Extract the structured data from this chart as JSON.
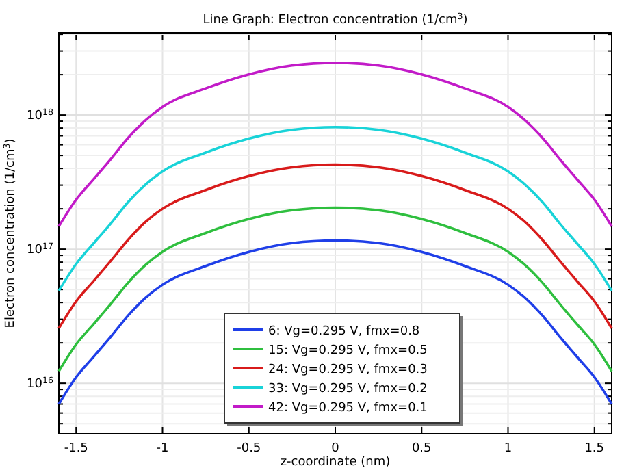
{
  "chart_data": {
    "type": "line",
    "title": "Line Graph: Electron concentration (1/cm$^{3}$)",
    "xlabel": "z-coordinate (nm)",
    "ylabel": "Electron concentration (1/cm$^{3}$)",
    "x": [
      -1.6,
      -1.5,
      -1.4,
      -1.3,
      -1.2,
      -1.1,
      -1,
      -0.75,
      -0.5,
      -0.25,
      0,
      0.25,
      0.5,
      0.75,
      1,
      1.1,
      1.2,
      1.3,
      1.4,
      1.5,
      1.6
    ],
    "series": [
      {
        "name": "6: Vg=0.295 V, fmx=0.8",
        "color": "#1f3fe8",
        "values": [
          7000000000000000.0,
          1.11e+16,
          1.57e+16,
          2.22e+16,
          3.19e+16,
          4.32e+16,
          5.43e+16,
          7.49e+16,
          9.54e+16,
          1.11e+17,
          1.16e+17,
          1.11e+17,
          9.54e+16,
          7.49e+16,
          5.43e+16,
          4.32e+16,
          3.19e+16,
          2.22e+16,
          1.57e+16,
          1.11e+16,
          7000000000000000.0
        ]
      },
      {
        "name": "15: Vg=0.295 V, fmx=0.5",
        "color": "#2fbf3f",
        "values": [
          1.23e+16,
          1.95e+16,
          2.75e+16,
          3.9e+16,
          5.61e+16,
          7.59e+16,
          9.55e+16,
          1.32e+17,
          1.68e+17,
          1.95e+17,
          2.04e+17,
          1.95e+17,
          1.68e+17,
          1.32e+17,
          9.55e+16,
          7.59e+16,
          5.61e+16,
          3.9e+16,
          2.75e+16,
          1.95e+16,
          1.23e+16
        ]
      },
      {
        "name": "24: Vg=0.295 V, fmx=0.3",
        "color": "#d81b1b",
        "values": [
          2.57e+16,
          4.08e+16,
          5.76e+16,
          8.16e+16,
          1.17e+17,
          1.59e+17,
          2e+17,
          2.76e+17,
          3.51e+17,
          4.08e+17,
          4.27e+17,
          4.08e+17,
          3.51e+17,
          2.76e+17,
          2e+17,
          1.59e+17,
          1.17e+17,
          8.16e+16,
          5.76e+16,
          4.08e+16,
          2.57e+16
        ]
      },
      {
        "name": "33: Vg=0.295 V, fmx=0.2",
        "color": "#19d3d8",
        "values": [
          4.9e+16,
          7.76e+16,
          1.1e+17,
          1.55e+17,
          2.24e+17,
          3.02e+17,
          3.8e+17,
          5.25e+17,
          6.68e+17,
          7.76e+17,
          8.13e+17,
          7.76e+17,
          6.68e+17,
          5.25e+17,
          3.8e+17,
          3.02e+17,
          2.24e+17,
          1.55e+17,
          1.1e+17,
          7.76e+16,
          4.9e+16
        ]
      },
      {
        "name": "42: Vg=0.295 V, fmx=0.1",
        "color": "#c21bc8",
        "values": [
          1.48e+17,
          2.34e+17,
          3.31e+17,
          4.68e+17,
          6.74e+17,
          9.11e+17,
          1.15e+18,
          1.58e+18,
          2.01e+18,
          2.34e+18,
          2.45e+18,
          2.34e+18,
          2.01e+18,
          1.58e+18,
          1.15e+18,
          9.11e+17,
          6.74e+17,
          4.68e+17,
          3.31e+17,
          2.34e+17,
          1.48e+17
        ]
      }
    ],
    "xlim": [
      -1.6,
      1.6
    ],
    "xticks": [
      -1.5,
      -1,
      -0.5,
      0,
      0.5,
      1,
      1.5
    ],
    "ylim": [
      4200000000000000.0,
      4.1e+18
    ],
    "yticks": [
      {
        "value": 5000000000000000.0,
        "label": null
      },
      {
        "value": 6000000000000000.0,
        "label": null
      },
      {
        "value": 7000000000000000.0,
        "label": null
      },
      {
        "value": 8000000000000000.0,
        "label": null
      },
      {
        "value": 9000000000000000.0,
        "label": null
      },
      {
        "value": 1e+16,
        "label": "10$^{16}$"
      },
      {
        "value": 2e+16,
        "label": null
      },
      {
        "value": 3e+16,
        "label": null
      },
      {
        "value": 4e+16,
        "label": null
      },
      {
        "value": 5e+16,
        "label": null
      },
      {
        "value": 6e+16,
        "label": null
      },
      {
        "value": 7e+16,
        "label": null
      },
      {
        "value": 8e+16,
        "label": null
      },
      {
        "value": 9e+16,
        "label": null
      },
      {
        "value": 1e+17,
        "label": "10$^{17}$"
      },
      {
        "value": 2e+17,
        "label": null
      },
      {
        "value": 3e+17,
        "label": null
      },
      {
        "value": 4e+17,
        "label": null
      },
      {
        "value": 5e+17,
        "label": null
      },
      {
        "value": 6e+17,
        "label": null
      },
      {
        "value": 7e+17,
        "label": null
      },
      {
        "value": 8e+17,
        "label": null
      },
      {
        "value": 9e+17,
        "label": null
      },
      {
        "value": 1e+18,
        "label": "10$^{18}$"
      },
      {
        "value": 2e+18,
        "label": null
      },
      {
        "value": 3e+18,
        "label": null
      },
      {
        "value": 4e+18,
        "label": null
      }
    ],
    "log": "y",
    "grid": true,
    "legend": "bottom",
    "line_style": "solid"
  }
}
